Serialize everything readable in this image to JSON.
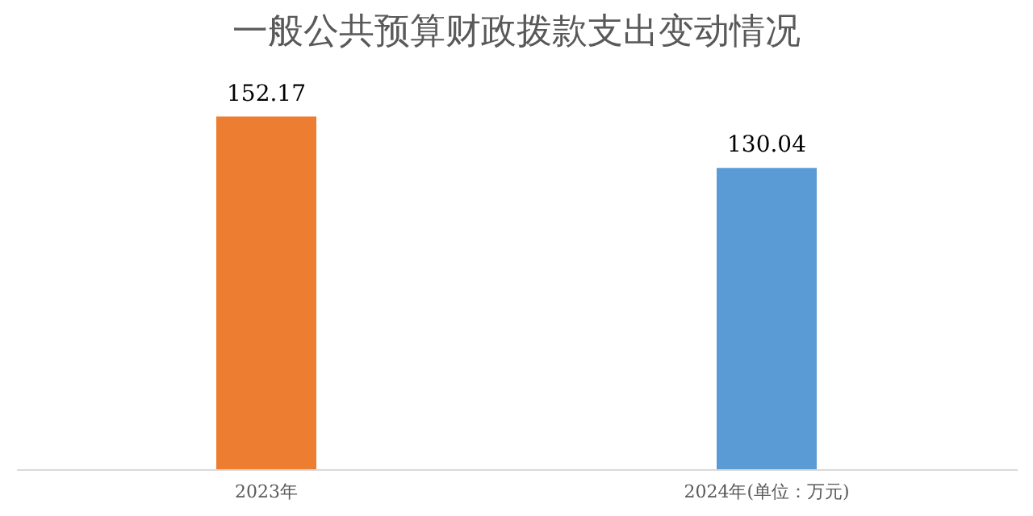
{
  "chart_data": {
    "type": "bar",
    "title": "一般公共预算财政拨款支出变动情况",
    "categories": [
      "2023年",
      "2024年(单位：万元)"
    ],
    "values": [
      152.17,
      130.04
    ],
    "colors": [
      "#ed7d31",
      "#5b9bd5"
    ],
    "data_labels": true,
    "grid": false
  }
}
